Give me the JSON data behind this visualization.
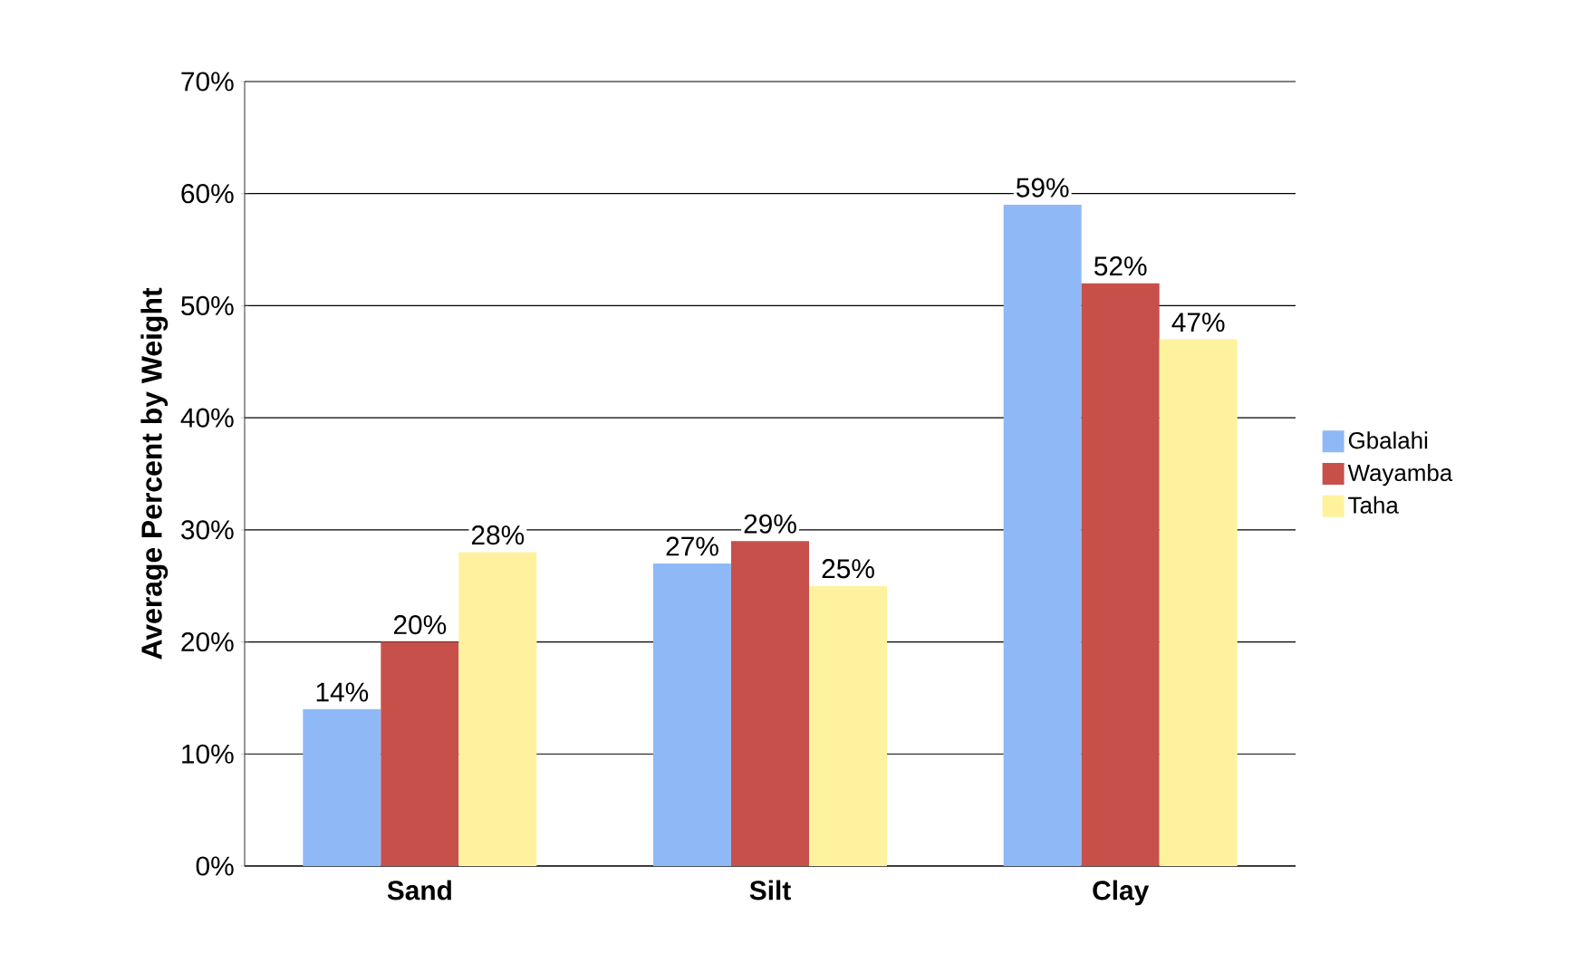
{
  "chart_data": {
    "type": "bar",
    "ylabel": "Average Percent by Weight",
    "categories": [
      "Sand",
      "Silt",
      "Clay"
    ],
    "series": [
      {
        "name": "Gbalahi",
        "color": "#8fb9f6",
        "values": [
          14,
          27,
          59
        ],
        "value_labels": [
          "14%",
          "27%",
          "59%"
        ]
      },
      {
        "name": "Wayamba",
        "color": "#c8504a",
        "values": [
          20,
          29,
          52
        ],
        "value_labels": [
          "20%",
          "29%",
          "52%"
        ]
      },
      {
        "name": "Taha",
        "color": "#fef29e",
        "values": [
          28,
          25,
          47
        ],
        "value_labels": [
          "28%",
          "25%",
          "47%"
        ]
      }
    ],
    "ylim": [
      0,
      70
    ],
    "yticks": [
      {
        "value": 0,
        "label": "0%"
      },
      {
        "value": 10,
        "label": "10%"
      },
      {
        "value": 20,
        "label": "20%"
      },
      {
        "value": 30,
        "label": "30%"
      },
      {
        "value": 40,
        "label": "40%"
      },
      {
        "value": 50,
        "label": "50%"
      },
      {
        "value": 60,
        "label": "60%"
      },
      {
        "value": 70,
        "label": "70%"
      }
    ],
    "grid": "y",
    "legend": "right"
  }
}
